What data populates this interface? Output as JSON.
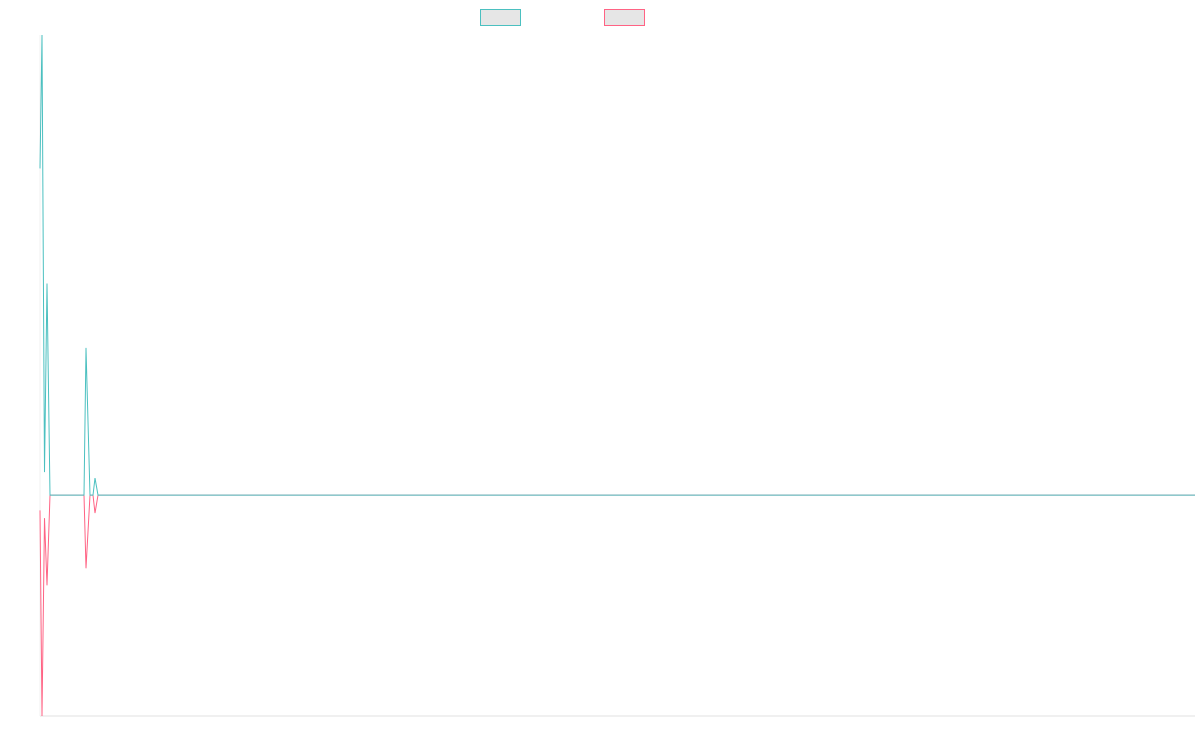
{
  "chart_data": {
    "type": "line",
    "x": [
      0,
      2,
      4.5,
      7,
      10,
      44,
      46,
      50,
      53,
      55,
      58,
      1155
    ],
    "xlim": [
      0,
      1155
    ],
    "ylim": [
      -0.48,
      1
    ],
    "legend": "top",
    "series": [
      {
        "color": "#ff6384",
        "values": [
          -0.033,
          -0.48,
          -0.05,
          -0.196,
          0,
          0,
          -0.159,
          0,
          0,
          -0.039,
          0,
          0
        ]
      },
      {
        "color": "#4bc0c0",
        "values": [
          0.71,
          1,
          0.05,
          0.46,
          0,
          0,
          0.32,
          0,
          0,
          0.037,
          0,
          0
        ]
      }
    ]
  }
}
